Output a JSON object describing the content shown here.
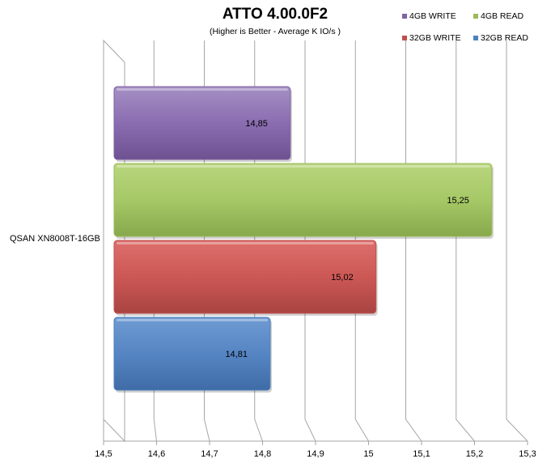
{
  "chart_data": {
    "type": "bar",
    "orientation": "horizontal",
    "title": "ATTO 4.00.0F2",
    "subtitle": "(Higher is Better - Average K IO/s )",
    "categories": [
      "QSAN XN8008T-16GB"
    ],
    "series": [
      {
        "name": "4GB WRITE",
        "values": [
          14.85
        ],
        "label": "14,85",
        "color": "#8064a2"
      },
      {
        "name": "4GB READ",
        "values": [
          15.25
        ],
        "label": "15,25",
        "color": "#9bbb59"
      },
      {
        "name": "32GB WRITE",
        "values": [
          15.02
        ],
        "label": "15,02",
        "color": "#c0504d"
      },
      {
        "name": "32GB READ",
        "values": [
          14.81
        ],
        "label": "14,81",
        "color": "#4f81bd"
      }
    ],
    "xlim": [
      14.5,
      15.3
    ],
    "xticks": [
      14.5,
      14.6,
      14.7,
      14.8,
      14.9,
      15,
      15.1,
      15.2,
      15.3
    ],
    "xtick_labels": [
      "14,5",
      "14,6",
      "14,7",
      "14,8",
      "14,9",
      "15",
      "15,1",
      "15,2",
      "15,3"
    ],
    "xlabel": "",
    "ylabel": "",
    "grid": true,
    "legend_position": "top-right"
  }
}
